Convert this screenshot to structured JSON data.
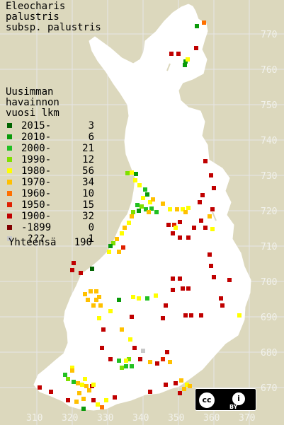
{
  "title": [
    "Eleocharis",
    "palustris",
    "subsp. palustris"
  ],
  "legend_header": [
    "Uusimman",
    "havainnon",
    "vuosi        lkm"
  ],
  "legend": [
    {
      "label": "2015-",
      "count": "3",
      "color": "#006400"
    },
    {
      "label": "2010-",
      "count": "6",
      "color": "#0a9a0a"
    },
    {
      "label": "2000-",
      "count": "21",
      "color": "#22c022"
    },
    {
      "label": "1990-",
      "count": "12",
      "color": "#7fe000"
    },
    {
      "label": "1980-",
      "count": "56",
      "color": "#ffff00"
    },
    {
      "label": "1970-",
      "count": "34",
      "color": "#ffc000"
    },
    {
      "label": "1960-",
      "count": "10",
      "color": "#ff7000"
    },
    {
      "label": "1950-",
      "count": "15",
      "color": "#e02000"
    },
    {
      "label": "1900-",
      "count": "32",
      "color": "#c00000"
    },
    {
      "label": "-1899",
      "count": "0",
      "color": "#800000"
    },
    {
      "label": " ???",
      "count": "1",
      "color": "#c8c8c8"
    }
  ],
  "total": {
    "label": "Yhteensä",
    "count": "190"
  },
  "y_axis_labels": [
    "770",
    "760",
    "750",
    "740",
    "730",
    "720",
    "710",
    "700",
    "690",
    "680",
    "670"
  ],
  "x_axis_labels": [
    "310",
    "320",
    "330",
    "340",
    "350",
    "360",
    "370"
  ],
  "license": {
    "cc": "cc",
    "by": "BY"
  },
  "colors": {
    "background": "#dcd8bd",
    "land": "#ffffff",
    "grid": "#e6e6e6"
  }
}
